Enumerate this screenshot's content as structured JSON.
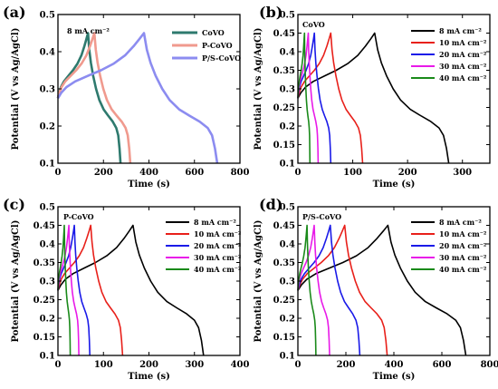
{
  "chart_data": [
    {
      "type": "line",
      "panel_label": "(a)",
      "annotation": "8 mA cm⁻²",
      "xlabel": "Time (s)",
      "ylabel": "Potential (V vs Ag/AgCl)",
      "xlim": [
        0,
        800
      ],
      "ylim": [
        0.1,
        0.5
      ],
      "xticks": [
        0,
        200,
        400,
        600,
        800
      ],
      "yticks": [
        0.1,
        0.2,
        0.3,
        0.4,
        0.5
      ],
      "xtick_labels": [
        "0",
        "200",
        "400",
        "600",
        "800"
      ],
      "ytick_labels": [
        "0.1",
        "0.2",
        "0.3",
        "0.4",
        "0.5"
      ],
      "legend_position": "top-right",
      "series": [
        {
          "name": "CoVO",
          "color": "#2e7a6e",
          "t_peak": 132,
          "t_end": 275
        },
        {
          "name": "P-CoVO",
          "color": "#f09a8e",
          "t_peak": 160,
          "t_end": 318
        },
        {
          "name": "P/S-CoVO",
          "color": "#8c8cf0",
          "t_peak": 378,
          "t_end": 700
        }
      ]
    },
    {
      "type": "line",
      "panel_label": "(b)",
      "annotation": "CoVO",
      "xlabel": "Time (s)",
      "ylabel": "Potential (V vs Ag/AgCl)",
      "xlim": [
        0,
        350
      ],
      "ylim": [
        0.1,
        0.5
      ],
      "xticks": [
        0,
        100,
        200,
        300
      ],
      "yticks": [
        0.1,
        0.15,
        0.2,
        0.25,
        0.3,
        0.35,
        0.4,
        0.45,
        0.5
      ],
      "xtick_labels": [
        "0",
        "100",
        "200",
        "300"
      ],
      "ytick_labels": [
        "0.1",
        "0.15",
        "0.2",
        "0.25",
        "0.3",
        "0.35",
        "0.4",
        "0.45",
        "0.5"
      ],
      "legend_position": "top-right",
      "series": [
        {
          "name": "8 mA cm⁻²",
          "color": "#000000",
          "t_peak": 140,
          "t_end": 275
        },
        {
          "name": "10 mA cm⁻²",
          "color": "#e8201a",
          "t_peak": 60,
          "t_end": 118
        },
        {
          "name": "20 mA cm⁻²",
          "color": "#1a1ae8",
          "t_peak": 30,
          "t_end": 60
        },
        {
          "name": "30 mA cm⁻²",
          "color": "#e81ae8",
          "t_peak": 19,
          "t_end": 37
        },
        {
          "name": "40 mA cm⁻²",
          "color": "#1a8a1a",
          "t_peak": 12,
          "t_end": 22
        }
      ]
    },
    {
      "type": "line",
      "panel_label": "(c)",
      "annotation": "P-CoVO",
      "xlabel": "Time (s)",
      "ylabel": "Potential (V vs Ag/AgCl)",
      "xlim": [
        0,
        400
      ],
      "ylim": [
        0.1,
        0.5
      ],
      "xticks": [
        0,
        100,
        200,
        300,
        400
      ],
      "yticks": [
        0.1,
        0.15,
        0.2,
        0.25,
        0.3,
        0.35,
        0.4,
        0.45,
        0.5
      ],
      "xtick_labels": [
        "0",
        "100",
        "200",
        "300",
        "400"
      ],
      "ytick_labels": [
        "0.1",
        "0.15",
        "0.2",
        "0.25",
        "0.3",
        "0.35",
        "0.4",
        "0.45",
        "0.5"
      ],
      "legend_position": "top-right",
      "series": [
        {
          "name": "8 mA cm⁻²",
          "color": "#000000",
          "t_peak": 165,
          "t_end": 320
        },
        {
          "name": "10 mA cm⁻²",
          "color": "#e8201a",
          "t_peak": 72,
          "t_end": 142
        },
        {
          "name": "20 mA cm⁻²",
          "color": "#1a1ae8",
          "t_peak": 36,
          "t_end": 70
        },
        {
          "name": "30 mA cm⁻²",
          "color": "#e81ae8",
          "t_peak": 24,
          "t_end": 46
        },
        {
          "name": "40 mA cm⁻²",
          "color": "#1a8a1a",
          "t_peak": 14,
          "t_end": 27
        }
      ]
    },
    {
      "type": "line",
      "panel_label": "(d)",
      "annotation": "P/S-CoVO",
      "xlabel": "Time (s)",
      "ylabel": "Potential (V vs Ag/AgCl)",
      "xlim": [
        0,
        800
      ],
      "ylim": [
        0.1,
        0.5
      ],
      "xticks": [
        0,
        200,
        400,
        600,
        800
      ],
      "yticks": [
        0.1,
        0.15,
        0.2,
        0.25,
        0.3,
        0.35,
        0.4,
        0.45,
        0.5
      ],
      "xtick_labels": [
        "0",
        "200",
        "400",
        "600",
        "800"
      ],
      "ytick_labels": [
        "0.1",
        "0.15",
        "0.2",
        "0.25",
        "0.3",
        "0.35",
        "0.4",
        "0.45",
        "0.5"
      ],
      "legend_position": "top-right",
      "series": [
        {
          "name": "8 mA cm⁻²",
          "color": "#000000",
          "t_peak": 375,
          "t_end": 700
        },
        {
          "name": "10 mA cm⁻²",
          "color": "#e8201a",
          "t_peak": 195,
          "t_end": 372
        },
        {
          "name": "20 mA cm⁻²",
          "color": "#1a1ae8",
          "t_peak": 135,
          "t_end": 258
        },
        {
          "name": "30 mA cm⁻²",
          "color": "#e81ae8",
          "t_peak": 68,
          "t_end": 132
        },
        {
          "name": "40 mA cm⁻²",
          "color": "#1a8a1a",
          "t_peak": 38,
          "t_end": 75
        }
      ]
    }
  ]
}
